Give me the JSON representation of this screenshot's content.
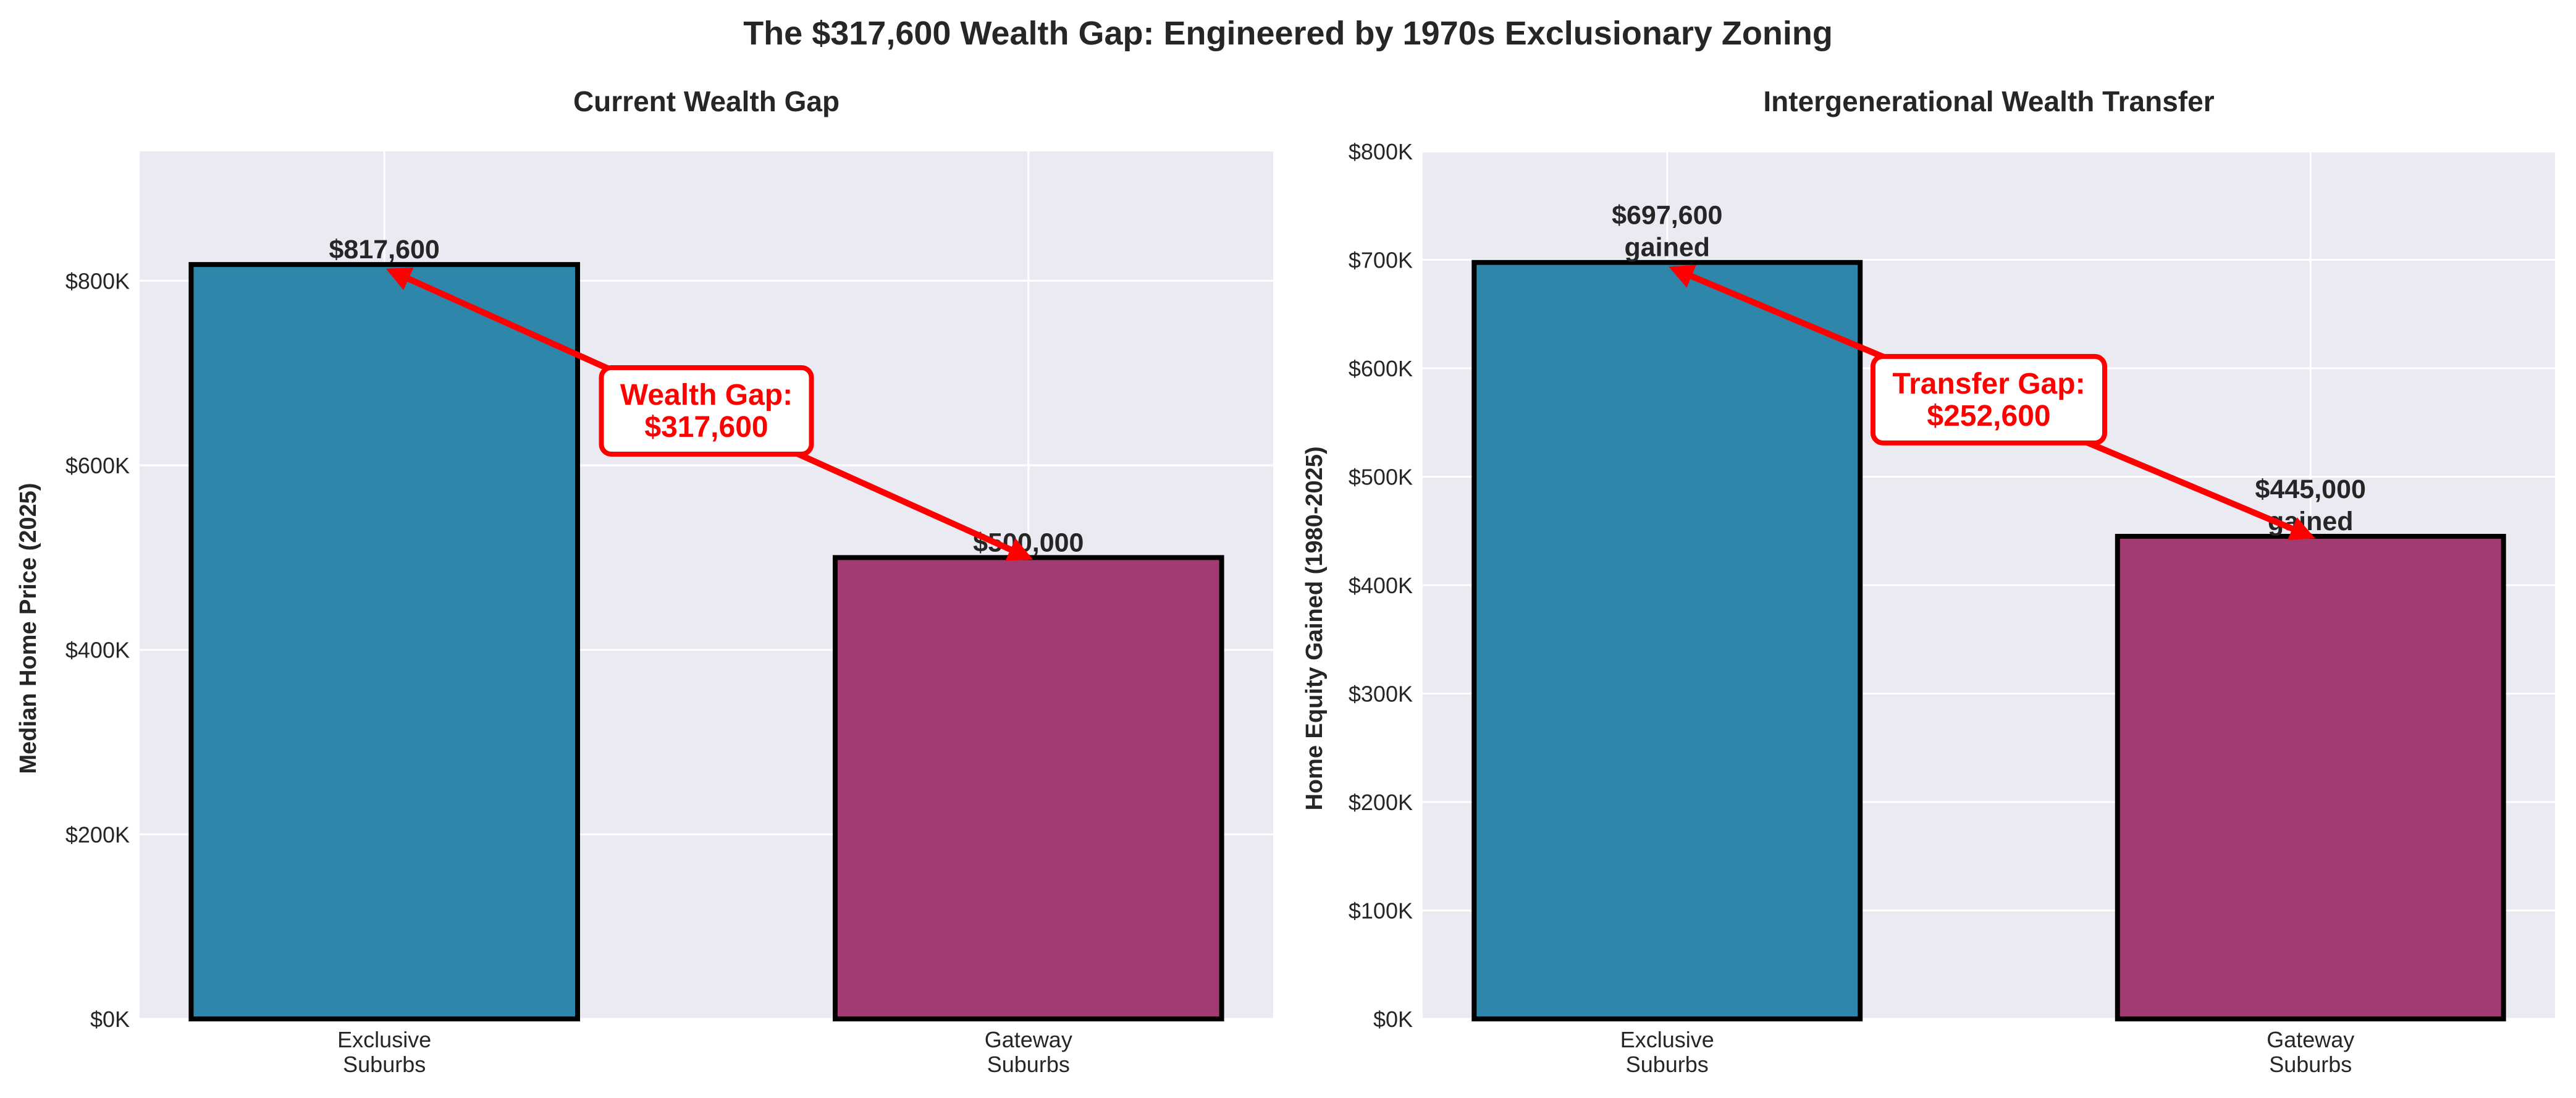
{
  "title": "The $317,600 Wealth Gap: Engineered by 1970s Exclusionary Zoning",
  "colors": {
    "exclusive": "#2E86AB",
    "gateway": "#A23B72",
    "annotation": "#FF0000",
    "plot_bg": "#EAEAF2",
    "grid": "#FFFFFF"
  },
  "chart_data": [
    {
      "type": "bar",
      "title": "Current Wealth Gap",
      "xlabel": "",
      "ylabel": "Median Home Price (2025)",
      "categories": [
        "Exclusive\nSuburbs",
        "Gateway\nSuburbs"
      ],
      "category_lines": [
        [
          "Exclusive",
          "Suburbs"
        ],
        [
          "Gateway",
          "Suburbs"
        ]
      ],
      "values": [
        817600,
        500000
      ],
      "data_labels": [
        [
          "$817,600"
        ],
        [
          "$500,000"
        ]
      ],
      "ylim": [
        0,
        940240
      ],
      "yticks": [
        0,
        200000,
        400000,
        600000,
        800000
      ],
      "ytick_labels": [
        "$0K",
        "$200K",
        "$400K",
        "$600K",
        "$800K"
      ],
      "grid": true,
      "annotation": {
        "lines": [
          "Wealth Gap:",
          "$317,600"
        ],
        "arrow_from": [
          1,
          500000
        ],
        "arrow_to": [
          0,
          817600
        ],
        "text_at": [
          0.5,
          659000
        ]
      }
    },
    {
      "type": "bar",
      "title": "Intergenerational Wealth Transfer",
      "xlabel": "",
      "ylabel": "Home Equity Gained (1980-2025)",
      "categories": [
        "Exclusive\nSuburbs",
        "Gateway\nSuburbs"
      ],
      "category_lines": [
        [
          "Exclusive",
          "Suburbs"
        ],
        [
          "Gateway",
          "Suburbs"
        ]
      ],
      "values": [
        697600,
        445000
      ],
      "data_labels": [
        [
          "$697,600",
          "gained"
        ],
        [
          "$445,000",
          "gained"
        ]
      ],
      "ylim": [
        0,
        800000
      ],
      "yticks": [
        0,
        100000,
        200000,
        300000,
        400000,
        500000,
        600000,
        700000,
        800000
      ],
      "ytick_labels": [
        "$0K",
        "$100K",
        "$200K",
        "$300K",
        "$400K",
        "$500K",
        "$600K",
        "$700K",
        "$800K"
      ],
      "grid": true,
      "annotation": {
        "lines": [
          "Transfer Gap:",
          "$252,600"
        ],
        "arrow_from": [
          1,
          445000
        ],
        "arrow_to": [
          0,
          697600
        ],
        "text_at": [
          0.5,
          571000
        ]
      }
    }
  ]
}
